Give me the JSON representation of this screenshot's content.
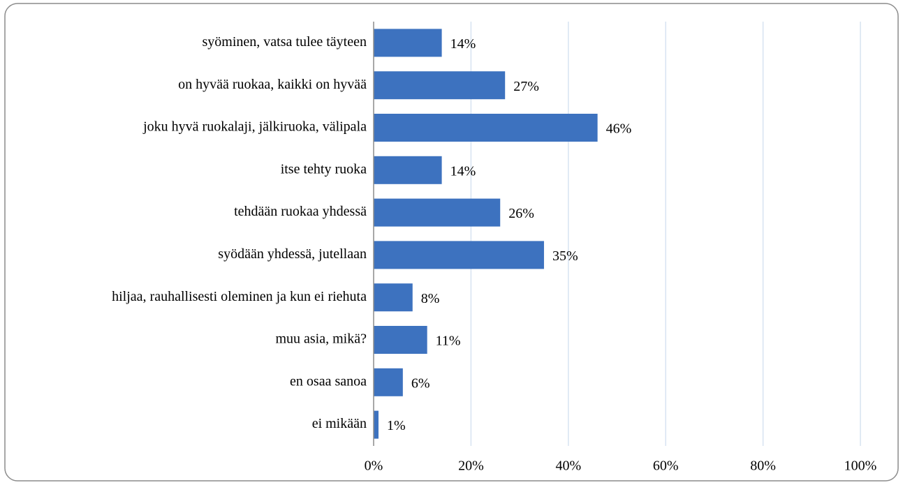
{
  "chart_data": {
    "type": "hbar",
    "categories": [
      "syöminen, vatsa tulee täyteen",
      "on hyvää ruokaa, kaikki on hyvää",
      "joku hyvä ruokalaji, jälkiruoka, välipala",
      "itse tehty ruoka",
      "tehdään ruokaa yhdessä",
      "syödään yhdessä, jutellaan",
      "hiljaa, rauhallisesti oleminen ja kun ei riehuta",
      "muu asia, mikä?",
      "en osaa sanoa",
      "ei mikään"
    ],
    "values": [
      14,
      27,
      46,
      14,
      26,
      35,
      8,
      11,
      6,
      1
    ],
    "value_labels": [
      "14%",
      "27%",
      "46%",
      "14%",
      "26%",
      "35%",
      "8%",
      "11%",
      "6%",
      "1%"
    ],
    "color": "#3d72bf",
    "xlim": [
      0,
      100
    ],
    "xticks": [
      {
        "value": 0,
        "label": "0%"
      },
      {
        "value": 20,
        "label": "20%"
      },
      {
        "value": 40,
        "label": "40%"
      },
      {
        "value": 60,
        "label": "60%"
      },
      {
        "value": 80,
        "label": "80%"
      },
      {
        "value": 100,
        "label": "100%"
      }
    ],
    "grid": true
  }
}
